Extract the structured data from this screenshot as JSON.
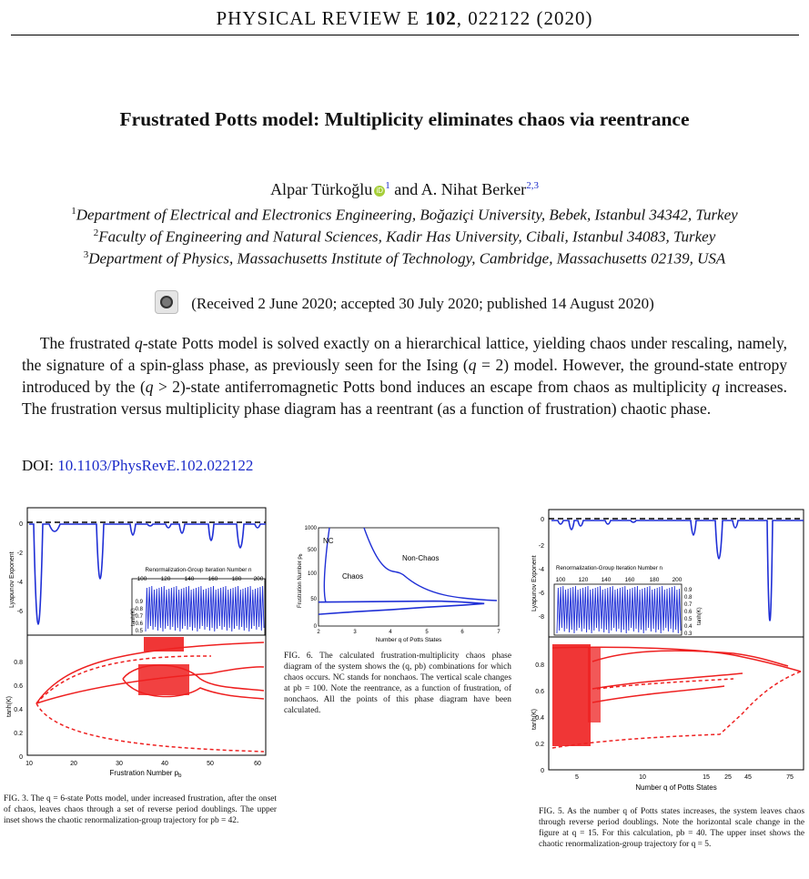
{
  "header": {
    "journal_prefix": "PHYSICAL REVIEW E ",
    "volume": "102",
    "article": ", 022122 (2020)"
  },
  "paper": {
    "title": "Frustrated Potts model: Multiplicity eliminates chaos via reentrance",
    "author1": "Alpar Türkoğlu",
    "author1_sup": "1",
    "author_sep": " and ",
    "author2": "A. Nihat Berker",
    "author2_sup": "2,3",
    "orcid_glyph": "iD",
    "affiliations": [
      {
        "num": "1",
        "text": "Department of Electrical and Electronics Engineering, Boğaziçi University, Bebek, Istanbul 34342, Turkey"
      },
      {
        "num": "2",
        "text": "Faculty of Engineering and Natural Sciences, Kadir Has University, Cibali, Istanbul 34083, Turkey"
      },
      {
        "num": "3",
        "text": "Department of Physics, Massachusetts Institute of Technology, Cambridge, Massachusetts 02139, USA"
      }
    ],
    "received": "(Received 2 June 2020; accepted 30 July 2020; published 14 August 2020)",
    "abstract": {
      "p1": "The frustrated ",
      "q1": "q",
      "p2": "-state Potts model is solved exactly on a hierarchical lattice, yielding chaos under rescaling, namely, the signature of a spin-glass phase, as previously seen for the Ising (",
      "q2": "q",
      "p3": " = 2) model. However, the ground-state entropy introduced by the (",
      "q3": "q",
      "p4": " > 2)-state antiferromagnetic Potts bond induces an escape from chaos as multiplicity ",
      "q4": "q",
      "p5": " increases. The frustration versus multiplicity phase diagram has a reentrant (as a function of frustration) chaotic phase."
    },
    "doi_label": "DOI: ",
    "doi": "10.1103/PhysRevE.102.022122"
  },
  "fig3": {
    "caption": "FIG. 3. The q = 6-state Potts model, under increased frustration, after the onset of chaos, leaves chaos through a set of reverse period doublings. The upper inset shows the chaotic renormalization-group trajectory for pb = 42.",
    "top_ylabel": "Lyapunov Exponent",
    "top_yticks": [
      "0",
      "-2",
      "-4",
      "-6"
    ],
    "bottom_ylabel": "tanh(K)",
    "bottom_yticks": [
      "0",
      "0.2",
      "0.4",
      "0.6",
      "0.8"
    ],
    "xlabel": "Frustration Number p",
    "xlabel_sub": "b",
    "xticks": [
      "10",
      "20",
      "30",
      "40",
      "50",
      "60"
    ],
    "inset_title": "Renormalization-Group Iteration Number n",
    "inset_xticks": [
      "100",
      "120",
      "140",
      "160",
      "180",
      "200"
    ],
    "inset_ylabel": "tanh(K)",
    "inset_yticks": [
      "0.9",
      "0.8",
      "0.7",
      "0.6",
      "0.5"
    ]
  },
  "fig6": {
    "caption": "FIG. 6. The calculated frustration-multiplicity chaos phase diagram of the system shows the (q, pb) combinations for which chaos occurs. NC stands for nonchaos. The vertical scale changes at pb = 100. Note the reentrance, as a function of frustration, of nonchaos. All the points of this phase diagram have been calculated.",
    "chart_data": {
      "type": "line",
      "xlabel": "Number q of Potts States",
      "ylabel": "Frustration Number p",
      "ylabel_sub": "b",
      "xticks": [
        "2",
        "3",
        "4",
        "5",
        "6",
        "7"
      ],
      "yticks": [
        "0",
        "50",
        "100",
        "500",
        "1000"
      ],
      "xlim": [
        2,
        7
      ],
      "regions": [
        "NC",
        "Chaos",
        "Non-Chaos"
      ],
      "lower_boundary": {
        "x": [
          2,
          3,
          4,
          5,
          6,
          6.6
        ],
        "y": [
          23,
          28,
          32,
          37,
          41,
          44
        ]
      }
    }
  },
  "fig5": {
    "caption": "FIG. 5. As the number q of Potts states increases, the system leaves chaos through reverse period doublings. Note the horizontal scale change in the figure at q = 15. For this calculation, pb = 40. The upper inset shows the chaotic renormalization-group trajectory for q = 5.",
    "top_ylabel": "Lyapunov Exponent",
    "top_yticks": [
      "0",
      "-2",
      "-4",
      "-6",
      "-8"
    ],
    "bottom_ylabel": "tanh(K)",
    "bottom_yticks": [
      "0",
      "0.2",
      "0.4",
      "0.6",
      "0.8"
    ],
    "xlabel": "Number q of Potts States",
    "xticks": [
      "5",
      "10",
      "15",
      "25",
      "45",
      "75"
    ],
    "inset_title": "Renormalization-Group Iteration Number n",
    "inset_xticks": [
      "100",
      "120",
      "140",
      "160",
      "180",
      "200"
    ],
    "inset_ylabel": "tanh(K)",
    "inset_yticks": [
      "0.9",
      "0.8",
      "0.7",
      "0.6",
      "0.5",
      "0.4",
      "0.3"
    ]
  },
  "colors": {
    "link": "#1b2bc9",
    "blue": "#1f2fd6",
    "red": "#ee2020"
  }
}
